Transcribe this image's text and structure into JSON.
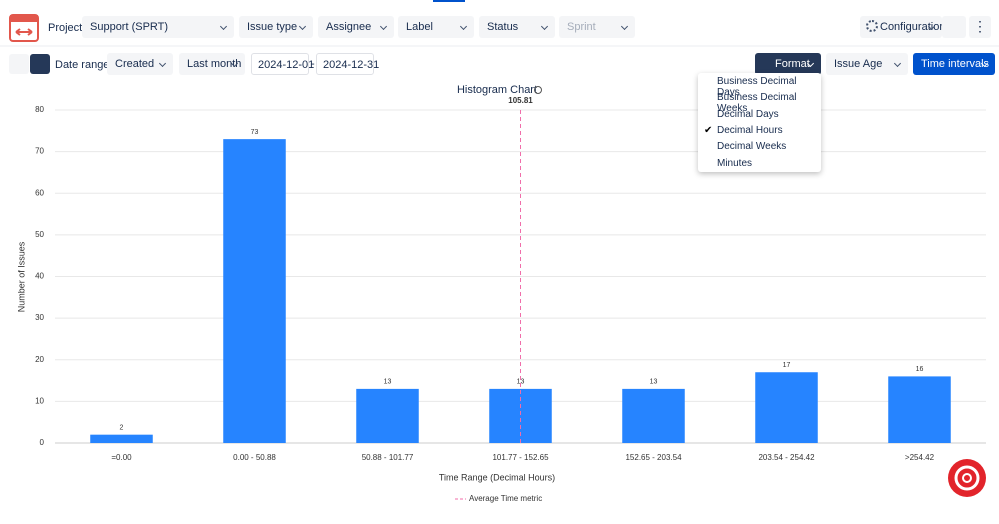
{
  "toolbar": {
    "project_label": "Project:",
    "project": "Support (SPRT)",
    "filters": [
      "Issue type",
      "Assignee",
      "Label",
      "Status",
      "Sprint"
    ],
    "configuration": "Configuration"
  },
  "controls": {
    "date_ranges_label": "Date ranges:",
    "date_field": "Created",
    "period": "Last month",
    "start": "2024-12-01",
    "separator": "-",
    "end": "2024-12-31",
    "format": "Format",
    "issue_age": "Issue Age",
    "time_intervals": "Time intervals"
  },
  "format_menu": {
    "items": [
      "Business Decimal Days",
      "Business Decimal Weeks",
      "Decimal Days",
      "Decimal Hours",
      "Decimal Weeks",
      "Minutes"
    ],
    "selected": 3
  },
  "chart_data": {
    "type": "bar",
    "title": "Histogram Chart",
    "categories": [
      "=0.00",
      "0.00 - 50.88",
      "50.88 - 101.77",
      "101.77 - 152.65",
      "152.65 - 203.54",
      "203.54 - 254.42",
      ">254.42"
    ],
    "values": [
      2,
      73,
      13,
      13,
      13,
      17,
      16
    ],
    "color": "#2684ff",
    "ylim": [
      0,
      80
    ],
    "yticks": [
      0,
      10,
      20,
      30,
      40,
      50,
      60,
      70,
      80
    ],
    "grid": true,
    "y_label": "Number of Issues",
    "x_label": "Time Range (Decimal Hours)",
    "average": 105.81,
    "average_color": "#f06eaa",
    "average_label": "Average Time metric"
  }
}
